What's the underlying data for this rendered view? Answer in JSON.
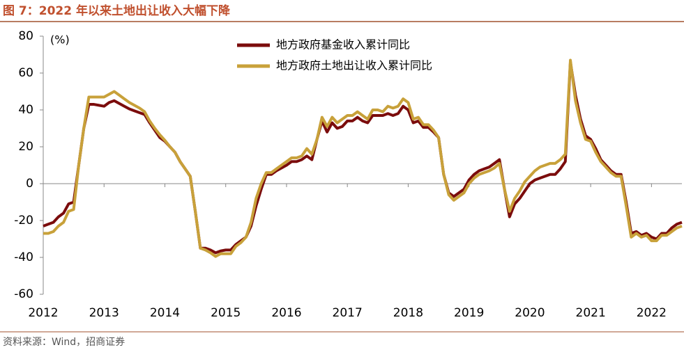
{
  "chart_data": {
    "type": "line",
    "title": "图 7：2022 年以来土地出让收入大幅下降",
    "y_unit": "(%)",
    "source": "资料来源：Wind，招商证券",
    "categories": [
      "2012",
      null,
      null,
      null,
      null,
      null,
      null,
      null,
      null,
      null,
      null,
      null,
      "2013",
      null,
      null,
      null,
      null,
      null,
      null,
      null,
      null,
      null,
      null,
      null,
      "2014",
      null,
      null,
      null,
      null,
      null,
      null,
      null,
      null,
      null,
      null,
      null,
      "2015",
      null,
      null,
      null,
      null,
      null,
      null,
      null,
      null,
      null,
      null,
      null,
      "2016",
      null,
      null,
      null,
      null,
      null,
      null,
      null,
      null,
      null,
      null,
      null,
      "2017",
      null,
      null,
      null,
      null,
      null,
      null,
      null,
      null,
      null,
      null,
      null,
      "2018",
      null,
      null,
      null,
      null,
      null,
      null,
      null,
      null,
      null,
      null,
      null,
      "2019",
      null,
      null,
      null,
      null,
      null,
      null,
      null,
      null,
      null,
      null,
      null,
      "2020",
      null,
      null,
      null,
      null,
      null,
      null,
      null,
      null,
      null,
      null,
      null,
      "2021",
      null,
      null,
      null,
      null,
      null,
      null,
      null,
      null,
      null,
      null,
      null,
      "2022",
      null,
      null,
      null,
      null,
      null,
      null
    ],
    "series": [
      {
        "name": "地方政府基金收入累计同比",
        "color": "#7b0c0c",
        "values": [
          -23,
          -22,
          -21,
          -18,
          -16,
          -11,
          -10,
          10,
          30,
          43,
          43,
          42.5,
          42,
          44,
          45,
          43.5,
          42,
          40.5,
          39.5,
          38.5,
          37.5,
          33,
          29,
          25,
          23,
          20,
          17,
          12,
          8,
          4,
          -15,
          -35,
          -35,
          -36,
          -37.5,
          -36.5,
          -36,
          -36,
          -33,
          -31,
          -29,
          -23,
          -12,
          -3,
          5,
          5,
          7,
          8.5,
          10,
          12,
          12,
          13,
          15,
          13,
          24,
          34,
          28,
          33,
          30,
          31,
          34,
          34,
          36,
          34,
          33,
          37,
          37,
          37,
          38,
          37,
          38,
          42,
          40,
          33,
          34,
          30.5,
          30.5,
          28,
          25,
          5,
          -5,
          -7,
          -5,
          -3,
          2,
          5,
          7,
          8,
          9,
          11,
          13,
          -3,
          -18,
          -11,
          -8,
          -4,
          0,
          2,
          3,
          4,
          5,
          5,
          8,
          12,
          66,
          48,
          35,
          26,
          24,
          19,
          13,
          10,
          7,
          5,
          5,
          -10,
          -27,
          -26,
          -28,
          -27,
          -29,
          -30,
          -27,
          -27,
          -24,
          -22,
          -21
        ]
      },
      {
        "name": "地方政府土地出让收入累计同比",
        "color": "#c8a13a",
        "values": [
          -27,
          -27,
          -26,
          -23,
          -21,
          -15,
          -14,
          10,
          30,
          47,
          47,
          47,
          47,
          48.5,
          50,
          48,
          46,
          44,
          42.5,
          41,
          39,
          34,
          30,
          26.5,
          23.5,
          20,
          17,
          12,
          8,
          4,
          -15,
          -35,
          -36,
          -37.5,
          -39.5,
          -38,
          -38,
          -38,
          -34,
          -32,
          -29,
          -21,
          -8,
          0,
          6,
          6,
          8,
          10,
          12,
          14,
          14,
          15,
          19,
          16,
          24,
          36,
          31,
          36,
          33,
          35,
          37,
          37,
          39,
          37,
          35,
          40,
          40,
          39,
          42,
          41,
          42,
          46,
          44,
          35,
          36,
          32,
          32,
          29,
          25,
          5,
          -6,
          -9,
          -7,
          -5,
          0,
          3,
          5,
          6,
          7,
          8.5,
          11,
          -3,
          -15,
          -8,
          -4,
          1,
          4,
          7,
          9,
          10,
          11,
          11,
          13,
          16,
          67,
          45,
          33,
          24,
          23,
          17,
          12,
          9,
          6,
          4,
          4,
          -12,
          -29,
          -27,
          -29,
          -28,
          -31,
          -31,
          -28,
          -28,
          -26,
          -24,
          -23
        ]
      }
    ],
    "ylim": [
      -60,
      80
    ],
    "yticks": [
      -60,
      -40,
      -20,
      0,
      20,
      40,
      60,
      80
    ]
  }
}
